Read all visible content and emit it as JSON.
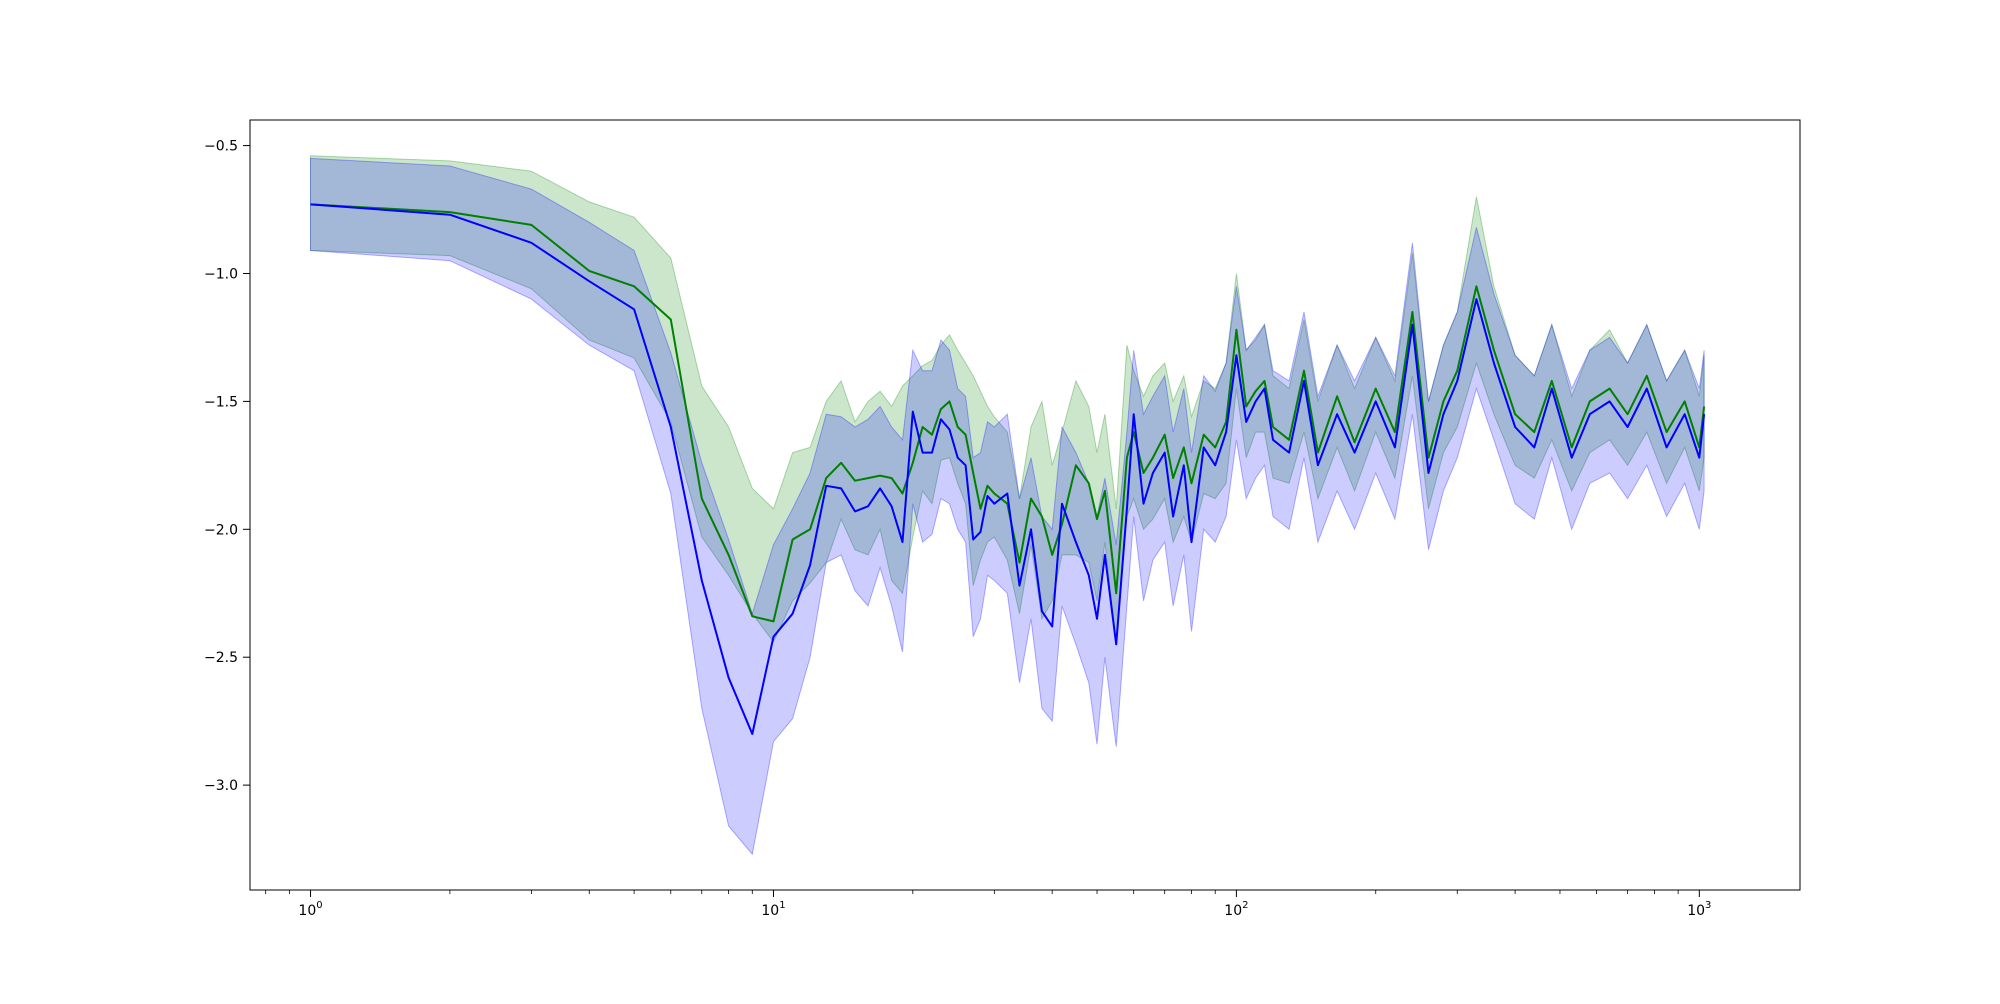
{
  "chart_data": {
    "type": "line",
    "title": "",
    "xlabel": "",
    "ylabel": "",
    "xscale": "log",
    "xlim": [
      0.74,
      1650
    ],
    "ylim": [
      -3.41,
      -0.4
    ],
    "grid": false,
    "legend": "none",
    "x_ticks": [
      {
        "value": 1,
        "base": "10",
        "exp": "0"
      },
      {
        "value": 10,
        "base": "10",
        "exp": "1"
      },
      {
        "value": 100,
        "base": "10",
        "exp": "2"
      },
      {
        "value": 1000,
        "base": "10",
        "exp": "3"
      }
    ],
    "y_ticks": [
      {
        "value": -0.5,
        "label": "−0.5"
      },
      {
        "value": -1.0,
        "label": "−1.0"
      },
      {
        "value": -1.5,
        "label": "−1.5"
      },
      {
        "value": -2.0,
        "label": "−2.0"
      },
      {
        "value": -2.5,
        "label": "−2.5"
      },
      {
        "value": -3.0,
        "label": "−3.0"
      }
    ],
    "series": [
      {
        "color": "#008000",
        "band_color": "#008000",
        "band_opacity": 0.2,
        "x": [
          1,
          2,
          3,
          4,
          5,
          6,
          7,
          8,
          9,
          10,
          11,
          12,
          13,
          14,
          15,
          16,
          17,
          18,
          19,
          20,
          21,
          22,
          23,
          24,
          25,
          26,
          27,
          28,
          29,
          30,
          32,
          34,
          36,
          38,
          40,
          42,
          45,
          48,
          50,
          52,
          55,
          58,
          60,
          63,
          66,
          70,
          73,
          77,
          80,
          85,
          90,
          95,
          100,
          105,
          110,
          115,
          120,
          130,
          140,
          150,
          165,
          180,
          200,
          220,
          240,
          260,
          280,
          300,
          330,
          360,
          400,
          440,
          480,
          530,
          580,
          640,
          700,
          770,
          850,
          930,
          1000,
          1024
        ],
        "mean": [
          -0.73,
          -0.76,
          -0.81,
          -0.99,
          -1.05,
          -1.18,
          -1.88,
          -2.1,
          -2.34,
          -2.36,
          -2.04,
          -2.0,
          -1.8,
          -1.74,
          -1.81,
          -1.8,
          -1.79,
          -1.8,
          -1.86,
          -1.74,
          -1.6,
          -1.63,
          -1.53,
          -1.5,
          -1.6,
          -1.63,
          -1.78,
          -1.92,
          -1.83,
          -1.86,
          -1.9,
          -2.13,
          -1.88,
          -1.95,
          -2.1,
          -1.98,
          -1.75,
          -1.82,
          -1.96,
          -1.85,
          -2.25,
          -1.72,
          -1.62,
          -1.78,
          -1.72,
          -1.63,
          -1.8,
          -1.68,
          -1.82,
          -1.63,
          -1.68,
          -1.58,
          -1.22,
          -1.52,
          -1.46,
          -1.42,
          -1.6,
          -1.65,
          -1.38,
          -1.7,
          -1.48,
          -1.66,
          -1.45,
          -1.62,
          -1.15,
          -1.72,
          -1.5,
          -1.38,
          -1.05,
          -1.3,
          -1.55,
          -1.62,
          -1.42,
          -1.68,
          -1.5,
          -1.45,
          -1.55,
          -1.4,
          -1.62,
          -1.5,
          -1.68,
          -1.52
        ],
        "lower": [
          -0.91,
          -0.93,
          -1.06,
          -1.26,
          -1.33,
          -1.58,
          -2.03,
          -2.18,
          -2.33,
          -2.44,
          -2.28,
          -2.21,
          -2.13,
          -1.96,
          -2.08,
          -2.1,
          -2.0,
          -2.2,
          -2.25,
          -2.03,
          -1.85,
          -1.9,
          -1.73,
          -1.72,
          -1.82,
          -1.9,
          -2.22,
          -2.12,
          -2.05,
          -2.03,
          -2.12,
          -2.33,
          -2.06,
          -2.35,
          -2.28,
          -2.1,
          -2.1,
          -2.13,
          -2.28,
          -2.05,
          -2.45,
          -1.95,
          -1.88,
          -2.0,
          -1.96,
          -1.88,
          -2.05,
          -1.95,
          -2.05,
          -1.86,
          -1.88,
          -1.82,
          -1.45,
          -1.72,
          -1.62,
          -1.62,
          -1.8,
          -1.82,
          -1.62,
          -1.88,
          -1.68,
          -1.85,
          -1.62,
          -1.8,
          -1.4,
          -1.92,
          -1.7,
          -1.6,
          -1.35,
          -1.55,
          -1.75,
          -1.8,
          -1.65,
          -1.85,
          -1.7,
          -1.65,
          -1.75,
          -1.62,
          -1.82,
          -1.68,
          -1.85,
          -1.72
        ],
        "upper": [
          -0.54,
          -0.56,
          -0.6,
          -0.72,
          -0.78,
          -0.94,
          -1.44,
          -1.6,
          -1.84,
          -1.92,
          -1.7,
          -1.68,
          -1.5,
          -1.42,
          -1.58,
          -1.5,
          -1.46,
          -1.52,
          -1.44,
          -1.4,
          -1.36,
          -1.34,
          -1.28,
          -1.24,
          -1.3,
          -1.35,
          -1.4,
          -1.46,
          -1.52,
          -1.56,
          -1.62,
          -1.88,
          -1.6,
          -1.5,
          -1.75,
          -1.62,
          -1.42,
          -1.52,
          -1.7,
          -1.55,
          -1.92,
          -1.28,
          -1.38,
          -1.48,
          -1.4,
          -1.35,
          -1.5,
          -1.4,
          -1.56,
          -1.42,
          -1.45,
          -1.35,
          -1.0,
          -1.3,
          -1.26,
          -1.2,
          -1.4,
          -1.45,
          -1.18,
          -1.5,
          -1.28,
          -1.45,
          -1.25,
          -1.42,
          -0.92,
          -1.5,
          -1.28,
          -1.15,
          -0.7,
          -1.05,
          -1.32,
          -1.4,
          -1.2,
          -1.48,
          -1.3,
          -1.22,
          -1.35,
          -1.2,
          -1.42,
          -1.3,
          -1.48,
          -1.32
        ]
      },
      {
        "color": "#0000ff",
        "band_color": "#0000ff",
        "band_opacity": 0.2,
        "x": [
          1,
          2,
          3,
          4,
          5,
          6,
          7,
          8,
          9,
          10,
          11,
          12,
          13,
          14,
          15,
          16,
          17,
          18,
          19,
          20,
          21,
          22,
          23,
          24,
          25,
          26,
          27,
          28,
          29,
          30,
          32,
          34,
          36,
          38,
          40,
          42,
          45,
          48,
          50,
          52,
          55,
          58,
          60,
          63,
          66,
          70,
          73,
          77,
          80,
          85,
          90,
          95,
          100,
          105,
          110,
          115,
          120,
          130,
          140,
          150,
          165,
          180,
          200,
          220,
          240,
          260,
          280,
          300,
          330,
          360,
          400,
          440,
          480,
          530,
          580,
          640,
          700,
          770,
          850,
          930,
          1000,
          1024
        ],
        "mean": [
          -0.73,
          -0.77,
          -0.88,
          -1.03,
          -1.14,
          -1.6,
          -2.2,
          -2.58,
          -2.8,
          -2.42,
          -2.33,
          -2.14,
          -1.83,
          -1.84,
          -1.93,
          -1.91,
          -1.84,
          -1.91,
          -2.05,
          -1.54,
          -1.7,
          -1.7,
          -1.57,
          -1.61,
          -1.72,
          -1.75,
          -2.04,
          -2.01,
          -1.87,
          -1.9,
          -1.86,
          -2.22,
          -2.0,
          -2.32,
          -2.38,
          -1.9,
          -2.05,
          -2.18,
          -2.35,
          -2.1,
          -2.45,
          -1.92,
          -1.55,
          -1.9,
          -1.78,
          -1.7,
          -1.95,
          -1.75,
          -2.05,
          -1.68,
          -1.75,
          -1.62,
          -1.32,
          -1.58,
          -1.5,
          -1.45,
          -1.65,
          -1.7,
          -1.42,
          -1.75,
          -1.55,
          -1.7,
          -1.5,
          -1.68,
          -1.2,
          -1.78,
          -1.55,
          -1.42,
          -1.1,
          -1.35,
          -1.6,
          -1.68,
          -1.45,
          -1.72,
          -1.55,
          -1.5,
          -1.6,
          -1.45,
          -1.68,
          -1.55,
          -1.72,
          -1.55
        ],
        "lower": [
          -0.91,
          -0.95,
          -1.1,
          -1.28,
          -1.38,
          -1.86,
          -2.7,
          -3.16,
          -3.27,
          -2.83,
          -2.74,
          -2.5,
          -2.13,
          -2.1,
          -2.24,
          -2.3,
          -2.15,
          -2.3,
          -2.48,
          -1.9,
          -2.05,
          -2.02,
          -1.88,
          -1.9,
          -2.0,
          -2.05,
          -2.42,
          -2.35,
          -2.18,
          -2.2,
          -2.25,
          -2.6,
          -2.35,
          -2.7,
          -2.75,
          -2.3,
          -2.45,
          -2.6,
          -2.84,
          -2.5,
          -2.85,
          -2.3,
          -1.95,
          -2.28,
          -2.12,
          -2.05,
          -2.3,
          -2.1,
          -2.4,
          -2.0,
          -2.05,
          -1.95,
          -1.65,
          -1.88,
          -1.8,
          -1.75,
          -1.95,
          -2.0,
          -1.72,
          -2.05,
          -1.85,
          -2.0,
          -1.78,
          -1.96,
          -1.55,
          -2.08,
          -1.85,
          -1.72,
          -1.45,
          -1.65,
          -1.9,
          -1.96,
          -1.72,
          -2.0,
          -1.82,
          -1.78,
          -1.88,
          -1.75,
          -1.95,
          -1.82,
          -2.0,
          -1.85
        ],
        "upper": [
          -0.55,
          -0.58,
          -0.67,
          -0.8,
          -0.91,
          -1.31,
          -1.74,
          -2.04,
          -2.33,
          -2.06,
          -1.92,
          -1.78,
          -1.55,
          -1.56,
          -1.6,
          -1.57,
          -1.52,
          -1.6,
          -1.65,
          -1.3,
          -1.38,
          -1.38,
          -1.26,
          -1.3,
          -1.45,
          -1.48,
          -1.72,
          -1.7,
          -1.58,
          -1.6,
          -1.55,
          -1.88,
          -1.72,
          -1.95,
          -2.0,
          -1.6,
          -1.7,
          -1.82,
          -1.95,
          -1.8,
          -2.06,
          -1.62,
          -1.3,
          -1.55,
          -1.48,
          -1.4,
          -1.62,
          -1.45,
          -1.7,
          -1.4,
          -1.46,
          -1.35,
          -1.05,
          -1.3,
          -1.25,
          -1.2,
          -1.38,
          -1.42,
          -1.15,
          -1.48,
          -1.28,
          -1.42,
          -1.25,
          -1.4,
          -0.88,
          -1.5,
          -1.28,
          -1.15,
          -0.82,
          -1.08,
          -1.32,
          -1.4,
          -1.2,
          -1.45,
          -1.3,
          -1.25,
          -1.35,
          -1.2,
          -1.42,
          -1.3,
          -1.45,
          -1.3
        ]
      }
    ]
  }
}
